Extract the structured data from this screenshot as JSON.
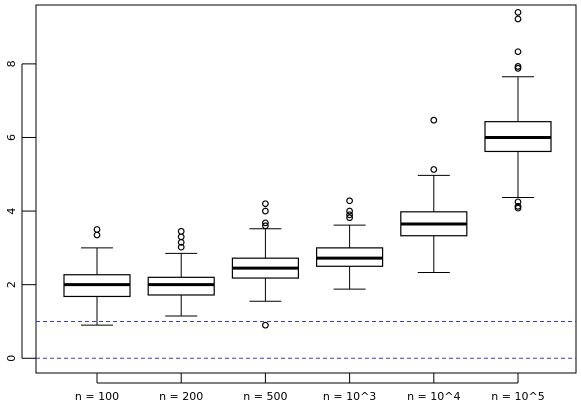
{
  "chart_data": {
    "type": "boxplot",
    "title": "",
    "xlabel": "",
    "ylabel": "",
    "ylim": [
      -0.4,
      9.6
    ],
    "yticks": [
      0,
      2,
      4,
      6,
      8
    ],
    "grid": false,
    "categories": [
      "n = 100",
      "n = 200",
      "n = 500",
      "n = 10^3",
      "n = 10^4",
      "n = 10^5"
    ],
    "boxes": [
      {
        "whisker_low": 0.9,
        "q1": 1.68,
        "median": 2.0,
        "q3": 2.27,
        "whisker_high": 3.0,
        "outliers": [
          3.35,
          3.5
        ]
      },
      {
        "whisker_low": 1.15,
        "q1": 1.72,
        "median": 2.0,
        "q3": 2.2,
        "whisker_high": 2.85,
        "outliers": [
          3.02,
          3.15,
          3.3,
          3.45
        ]
      },
      {
        "whisker_low": 1.55,
        "q1": 2.18,
        "median": 2.45,
        "q3": 2.72,
        "whisker_high": 3.52,
        "outliers": [
          0.9,
          3.6,
          3.68,
          4.0,
          4.2
        ]
      },
      {
        "whisker_low": 1.88,
        "q1": 2.5,
        "median": 2.72,
        "q3": 3.0,
        "whisker_high": 3.62,
        "outliers": [
          3.82,
          3.9,
          4.0,
          4.28
        ]
      },
      {
        "whisker_low": 2.33,
        "q1": 3.33,
        "median": 3.65,
        "q3": 3.98,
        "whisker_high": 4.97,
        "outliers": [
          5.13,
          6.47
        ]
      },
      {
        "whisker_low": 4.37,
        "q1": 5.62,
        "median": 6.0,
        "q3": 6.43,
        "whisker_high": 7.65,
        "outliers": [
          4.08,
          4.13,
          4.25,
          7.88,
          7.93,
          8.33,
          9.22,
          9.4
        ]
      }
    ],
    "reference_lines": [
      {
        "y": 0,
        "style": "dashed",
        "color": "#3b3bd6"
      },
      {
        "y": 1,
        "style": "dashed",
        "color": "#3b3bd6"
      }
    ]
  }
}
